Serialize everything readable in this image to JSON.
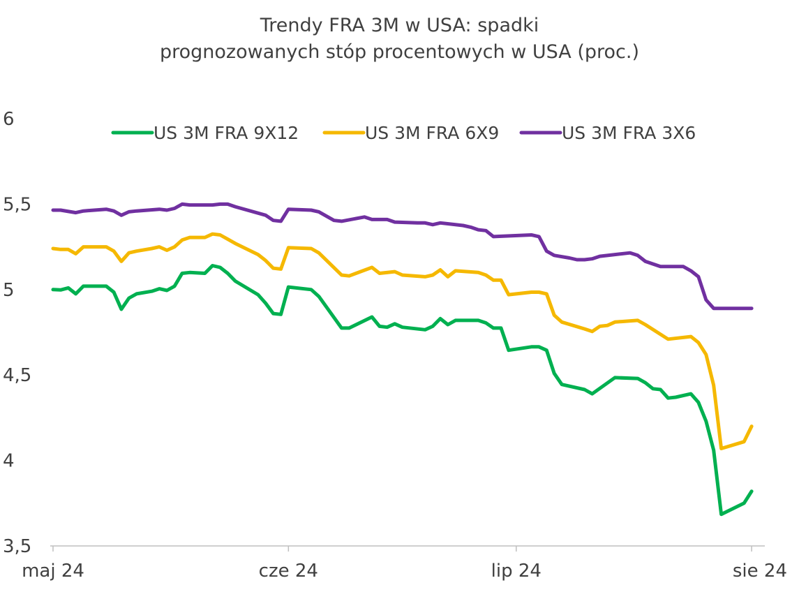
{
  "chart_data": {
    "type": "line",
    "title_line1": "Trendy FRA 3M w USA: spadki",
    "title_line2": "prognozowanych stóp procentowych w USA (proc.)",
    "xlabel": "",
    "ylabel": "",
    "ylim": [
      3.5,
      6
    ],
    "y_ticks": [
      "6",
      "5,5",
      "5",
      "4,5",
      "4",
      "3,5"
    ],
    "y_tick_values": [
      6,
      5.5,
      5,
      4.5,
      4,
      3.5
    ],
    "x_tick_labels": [
      "maj 24",
      "cze 24",
      "lip 24",
      "sie 24"
    ],
    "x_tick_dates": [
      "2024-05-01",
      "2024-06-01",
      "2024-07-01",
      "2024-08-01"
    ],
    "x_range": [
      "2024-05-01",
      "2024-08-02"
    ],
    "grid": false,
    "legend_position": "top",
    "series": [
      {
        "name": "US 3M FRA 9X12",
        "color": "#00b050",
        "points": [
          [
            "2024-05-01",
            5.0
          ],
          [
            "2024-05-02",
            4.998
          ],
          [
            "2024-05-03",
            5.01
          ],
          [
            "2024-05-04",
            4.975
          ],
          [
            "2024-05-05",
            5.02
          ],
          [
            "2024-05-06",
            5.02
          ],
          [
            "2024-05-08",
            5.02
          ],
          [
            "2024-05-09",
            4.985
          ],
          [
            "2024-05-10",
            4.885
          ],
          [
            "2024-05-11",
            4.95
          ],
          [
            "2024-05-12",
            4.975
          ],
          [
            "2024-05-14",
            4.99
          ],
          [
            "2024-05-15",
            5.005
          ],
          [
            "2024-05-16",
            4.995
          ],
          [
            "2024-05-17",
            5.02
          ],
          [
            "2024-05-18",
            5.095
          ],
          [
            "2024-05-19",
            5.1
          ],
          [
            "2024-05-21",
            5.095
          ],
          [
            "2024-05-22",
            5.14
          ],
          [
            "2024-05-23",
            5.13
          ],
          [
            "2024-05-24",
            5.095
          ],
          [
            "2024-05-25",
            5.05
          ],
          [
            "2024-05-28",
            4.97
          ],
          [
            "2024-05-29",
            4.92
          ],
          [
            "2024-05-30",
            4.86
          ],
          [
            "2024-05-31",
            4.855
          ],
          [
            "2024-06-01",
            5.015
          ],
          [
            "2024-06-04",
            5.0
          ],
          [
            "2024-06-05",
            4.96
          ],
          [
            "2024-06-08",
            4.775
          ],
          [
            "2024-06-09",
            4.775
          ],
          [
            "2024-06-12",
            4.84
          ],
          [
            "2024-06-13",
            4.785
          ],
          [
            "2024-06-14",
            4.78
          ],
          [
            "2024-06-15",
            4.8
          ],
          [
            "2024-06-16",
            4.78
          ],
          [
            "2024-06-19",
            4.765
          ],
          [
            "2024-06-20",
            4.785
          ],
          [
            "2024-06-21",
            4.83
          ],
          [
            "2024-06-22",
            4.795
          ],
          [
            "2024-06-23",
            4.82
          ],
          [
            "2024-06-26",
            4.82
          ],
          [
            "2024-06-27",
            4.805
          ],
          [
            "2024-06-28",
            4.775
          ],
          [
            "2024-06-29",
            4.775
          ],
          [
            "2024-06-30",
            4.645
          ],
          [
            "2024-07-03",
            4.665
          ],
          [
            "2024-07-04",
            4.665
          ],
          [
            "2024-07-05",
            4.645
          ],
          [
            "2024-07-06",
            4.51
          ],
          [
            "2024-07-07",
            4.445
          ],
          [
            "2024-07-10",
            4.415
          ],
          [
            "2024-07-11",
            4.39
          ],
          [
            "2024-07-14",
            4.485
          ],
          [
            "2024-07-17",
            4.48
          ],
          [
            "2024-07-18",
            4.455
          ],
          [
            "2024-07-19",
            4.42
          ],
          [
            "2024-07-20",
            4.415
          ],
          [
            "2024-07-21",
            4.365
          ],
          [
            "2024-07-22",
            4.37
          ],
          [
            "2024-07-24",
            4.39
          ],
          [
            "2024-07-25",
            4.34
          ],
          [
            "2024-07-26",
            4.23
          ],
          [
            "2024-07-27",
            4.06
          ],
          [
            "2024-07-28",
            3.685
          ],
          [
            "2024-07-31",
            3.75
          ],
          [
            "2024-08-01",
            3.82
          ]
        ]
      },
      {
        "name": "US 3M FRA 6X9",
        "color": "#f5b800",
        "points": [
          [
            "2024-05-01",
            5.24
          ],
          [
            "2024-05-02",
            5.235
          ],
          [
            "2024-05-03",
            5.235
          ],
          [
            "2024-05-04",
            5.21
          ],
          [
            "2024-05-05",
            5.25
          ],
          [
            "2024-05-06",
            5.25
          ],
          [
            "2024-05-08",
            5.25
          ],
          [
            "2024-05-09",
            5.225
          ],
          [
            "2024-05-10",
            5.165
          ],
          [
            "2024-05-11",
            5.215
          ],
          [
            "2024-05-12",
            5.225
          ],
          [
            "2024-05-14",
            5.24
          ],
          [
            "2024-05-15",
            5.25
          ],
          [
            "2024-05-16",
            5.23
          ],
          [
            "2024-05-17",
            5.25
          ],
          [
            "2024-05-18",
            5.29
          ],
          [
            "2024-05-19",
            5.305
          ],
          [
            "2024-05-21",
            5.305
          ],
          [
            "2024-05-22",
            5.325
          ],
          [
            "2024-05-23",
            5.32
          ],
          [
            "2024-05-24",
            5.295
          ],
          [
            "2024-05-25",
            5.27
          ],
          [
            "2024-05-28",
            5.205
          ],
          [
            "2024-05-29",
            5.17
          ],
          [
            "2024-05-30",
            5.125
          ],
          [
            "2024-05-31",
            5.12
          ],
          [
            "2024-06-01",
            5.245
          ],
          [
            "2024-06-04",
            5.24
          ],
          [
            "2024-06-05",
            5.215
          ],
          [
            "2024-06-08",
            5.085
          ],
          [
            "2024-06-09",
            5.08
          ],
          [
            "2024-06-12",
            5.13
          ],
          [
            "2024-06-13",
            5.095
          ],
          [
            "2024-06-15",
            5.105
          ],
          [
            "2024-06-16",
            5.085
          ],
          [
            "2024-06-19",
            5.075
          ],
          [
            "2024-06-20",
            5.085
          ],
          [
            "2024-06-21",
            5.115
          ],
          [
            "2024-06-22",
            5.075
          ],
          [
            "2024-06-23",
            5.11
          ],
          [
            "2024-06-26",
            5.1
          ],
          [
            "2024-06-27",
            5.085
          ],
          [
            "2024-06-28",
            5.055
          ],
          [
            "2024-06-29",
            5.055
          ],
          [
            "2024-06-30",
            4.97
          ],
          [
            "2024-07-03",
            4.985
          ],
          [
            "2024-07-04",
            4.985
          ],
          [
            "2024-07-05",
            4.975
          ],
          [
            "2024-07-06",
            4.85
          ],
          [
            "2024-07-07",
            4.81
          ],
          [
            "2024-07-10",
            4.77
          ],
          [
            "2024-07-11",
            4.755
          ],
          [
            "2024-07-12",
            4.785
          ],
          [
            "2024-07-13",
            4.79
          ],
          [
            "2024-07-14",
            4.81
          ],
          [
            "2024-07-17",
            4.82
          ],
          [
            "2024-07-18",
            4.795
          ],
          [
            "2024-07-21",
            4.71
          ],
          [
            "2024-07-24",
            4.725
          ],
          [
            "2024-07-25",
            4.69
          ],
          [
            "2024-07-26",
            4.62
          ],
          [
            "2024-07-27",
            4.44
          ],
          [
            "2024-07-28",
            4.07
          ],
          [
            "2024-07-31",
            4.11
          ],
          [
            "2024-08-01",
            4.2
          ]
        ]
      },
      {
        "name": "US 3M FRA 3X6",
        "color": "#7030a0",
        "points": [
          [
            "2024-05-01",
            5.465
          ],
          [
            "2024-05-02",
            5.465
          ],
          [
            "2024-05-04",
            5.45
          ],
          [
            "2024-05-05",
            5.46
          ],
          [
            "2024-05-08",
            5.47
          ],
          [
            "2024-05-09",
            5.46
          ],
          [
            "2024-05-10",
            5.435
          ],
          [
            "2024-05-11",
            5.455
          ],
          [
            "2024-05-12",
            5.46
          ],
          [
            "2024-05-15",
            5.47
          ],
          [
            "2024-05-16",
            5.465
          ],
          [
            "2024-05-17",
            5.475
          ],
          [
            "2024-05-18",
            5.5
          ],
          [
            "2024-05-19",
            5.495
          ],
          [
            "2024-05-22",
            5.495
          ],
          [
            "2024-05-23",
            5.5
          ],
          [
            "2024-05-24",
            5.5
          ],
          [
            "2024-05-25",
            5.485
          ],
          [
            "2024-05-29",
            5.435
          ],
          [
            "2024-05-30",
            5.405
          ],
          [
            "2024-05-31",
            5.4
          ],
          [
            "2024-06-01",
            5.47
          ],
          [
            "2024-06-04",
            5.465
          ],
          [
            "2024-06-05",
            5.455
          ],
          [
            "2024-06-07",
            5.405
          ],
          [
            "2024-06-08",
            5.4
          ],
          [
            "2024-06-11",
            5.425
          ],
          [
            "2024-06-12",
            5.41
          ],
          [
            "2024-06-14",
            5.41
          ],
          [
            "2024-06-15",
            5.395
          ],
          [
            "2024-06-18",
            5.39
          ],
          [
            "2024-06-19",
            5.39
          ],
          [
            "2024-06-20",
            5.38
          ],
          [
            "2024-06-21",
            5.39
          ],
          [
            "2024-06-24",
            5.375
          ],
          [
            "2024-06-25",
            5.365
          ],
          [
            "2024-06-26",
            5.35
          ],
          [
            "2024-06-27",
            5.345
          ],
          [
            "2024-06-28",
            5.31
          ],
          [
            "2024-07-03",
            5.32
          ],
          [
            "2024-07-04",
            5.31
          ],
          [
            "2024-07-05",
            5.225
          ],
          [
            "2024-07-06",
            5.2
          ],
          [
            "2024-07-08",
            5.185
          ],
          [
            "2024-07-09",
            5.175
          ],
          [
            "2024-07-10",
            5.175
          ],
          [
            "2024-07-11",
            5.18
          ],
          [
            "2024-07-12",
            5.195
          ],
          [
            "2024-07-16",
            5.215
          ],
          [
            "2024-07-17",
            5.2
          ],
          [
            "2024-07-18",
            5.165
          ],
          [
            "2024-07-20",
            5.135
          ],
          [
            "2024-07-23",
            5.135
          ],
          [
            "2024-07-24",
            5.11
          ],
          [
            "2024-07-25",
            5.075
          ],
          [
            "2024-07-26",
            4.94
          ],
          [
            "2024-07-27",
            4.89
          ],
          [
            "2024-08-01",
            4.89
          ]
        ]
      }
    ]
  }
}
